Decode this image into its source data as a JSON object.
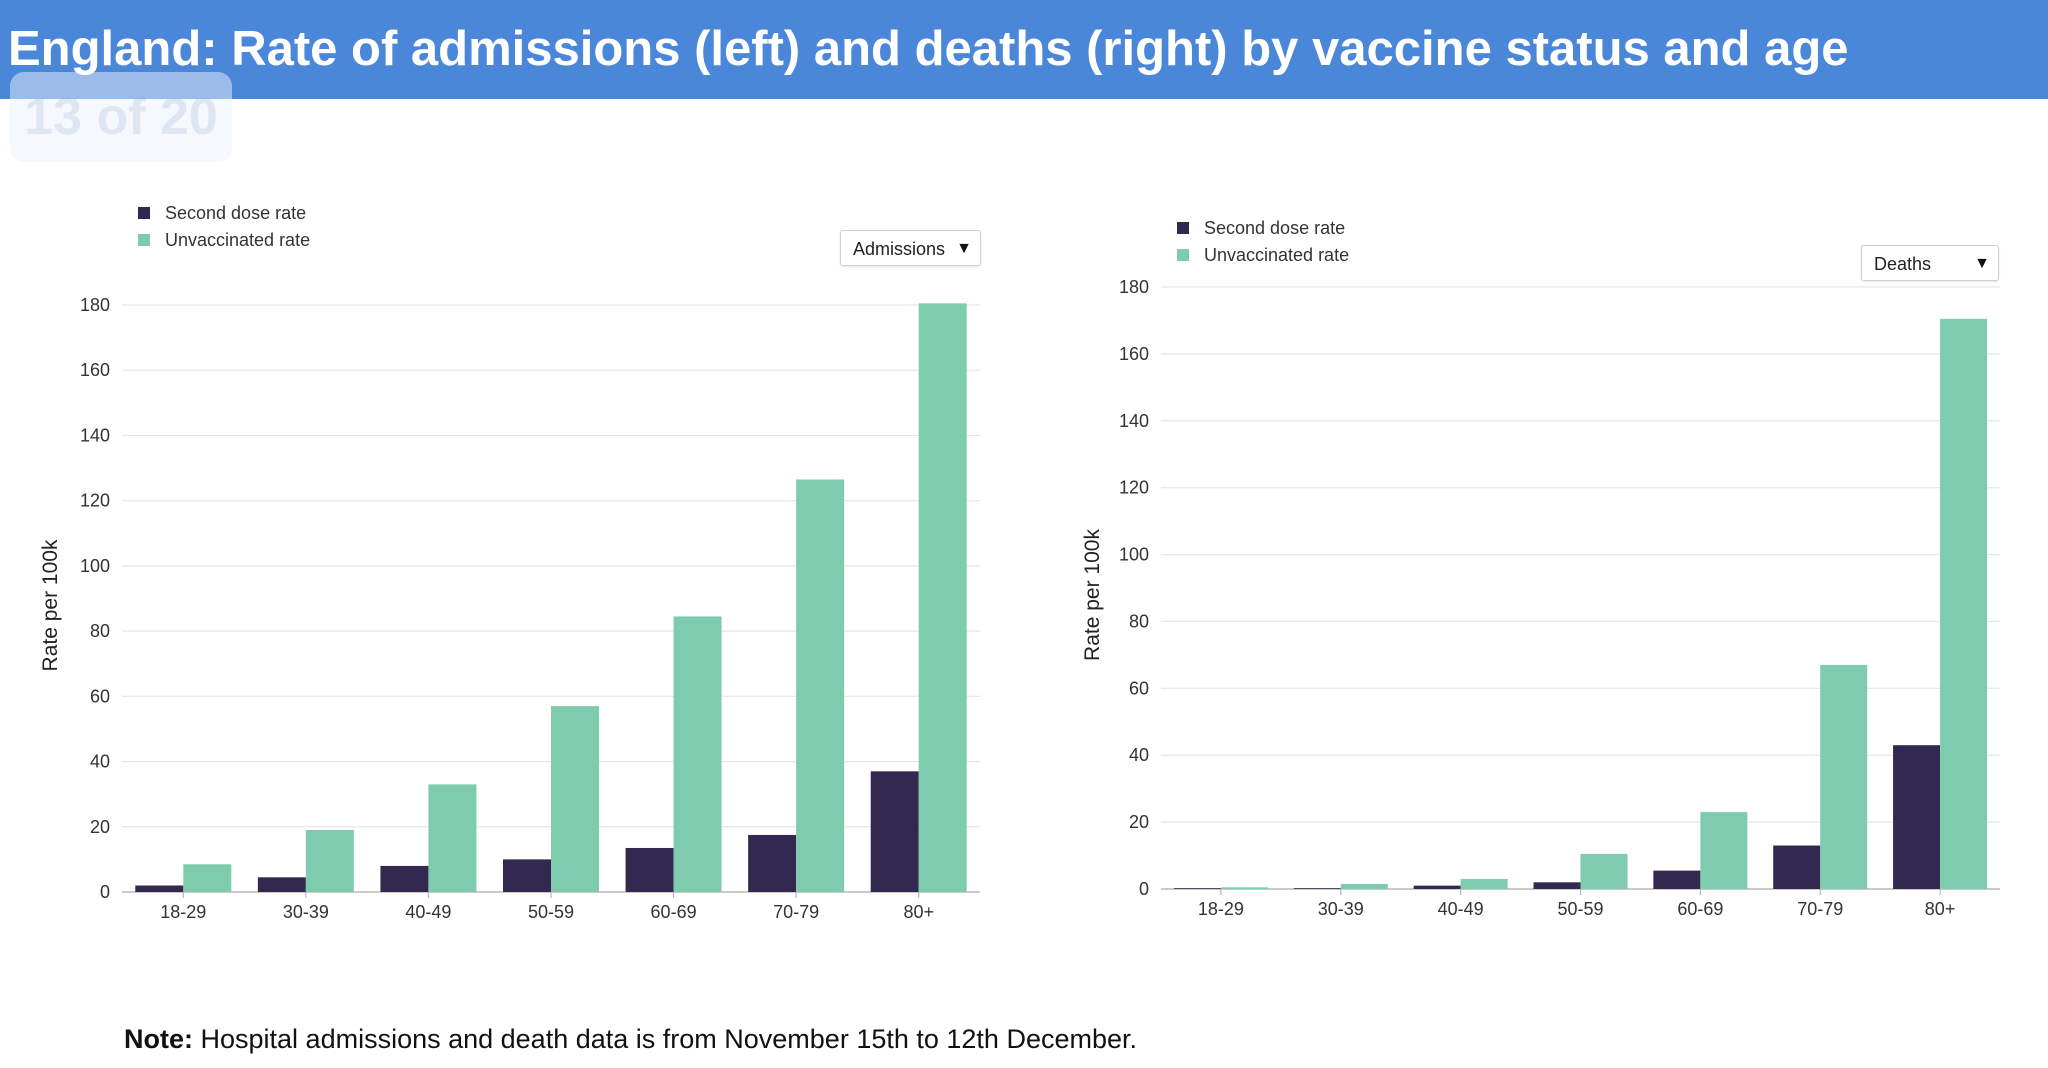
{
  "slide": {
    "title": "England: Rate of admissions (left) and deaths (right) by vaccine status and age",
    "counter": "13 of 20",
    "note_label": "Note:",
    "note_text": " Hospital admissions and death data is from November 15th to 12th December."
  },
  "colors": {
    "header_bg": "#4a87d8",
    "second_dose": "#33284f",
    "unvaccinated": "#7fcbad"
  },
  "chart_data": [
    {
      "type": "bar",
      "selector": "Admissions",
      "categories": [
        "18-29",
        "30-39",
        "40-49",
        "50-59",
        "60-69",
        "70-79",
        "80+"
      ],
      "series": [
        {
          "name": "Second dose rate",
          "values": [
            2,
            4.5,
            8,
            10,
            13.5,
            17.5,
            37
          ]
        },
        {
          "name": "Unvaccinated rate",
          "values": [
            8.5,
            19,
            33,
            57,
            84.5,
            126.5,
            180.5
          ]
        }
      ],
      "ylabel": "Rate per 100k",
      "xlabel": "",
      "ylim": [
        0,
        180
      ],
      "yticks": [
        0,
        20,
        40,
        60,
        80,
        100,
        120,
        140,
        160,
        180
      ],
      "legend": "top-left",
      "grid": true
    },
    {
      "type": "bar",
      "selector": "Deaths",
      "categories": [
        "18-29",
        "30-39",
        "40-49",
        "50-59",
        "60-69",
        "70-79",
        "80+"
      ],
      "series": [
        {
          "name": "Second dose rate",
          "values": [
            0.2,
            0.2,
            1,
            2,
            5.5,
            13,
            43
          ]
        },
        {
          "name": "Unvaccinated rate",
          "values": [
            0.5,
            1.5,
            3,
            10.5,
            23,
            67,
            170.5
          ]
        }
      ],
      "ylabel": "Rate per 100k",
      "xlabel": "",
      "ylim": [
        0,
        180
      ],
      "yticks": [
        0,
        20,
        40,
        60,
        80,
        100,
        120,
        140,
        160,
        180
      ],
      "legend": "top-left",
      "grid": true
    }
  ]
}
